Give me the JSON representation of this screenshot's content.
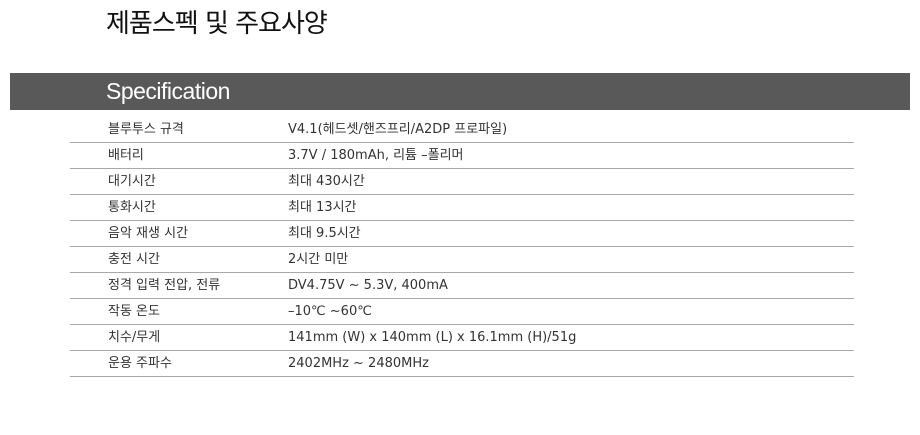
{
  "title": "제품스펙 및 주요사양",
  "section_label": "Specification",
  "colors": {
    "header_bar": "#595959",
    "header_text": "#ffffff",
    "row_divider": "#a8a8a8",
    "body_text": "#333333"
  },
  "specs": [
    {
      "name": "블루투스 규격",
      "value": "V4.1(헤드셋/핸즈프리/A2DP 프로파일)"
    },
    {
      "name": "배터리",
      "value": "3.7V / 180mAh, 리튬 –폴리머"
    },
    {
      "name": "대기시간",
      "value": "최대 430시간"
    },
    {
      "name": "통화시간",
      "value": "최대 13시간"
    },
    {
      "name": "음악 재생 시간",
      "value": "최대 9.5시간"
    },
    {
      "name": "충전 시간",
      "value": "2시간 미만"
    },
    {
      "name": "정격 입력 전압, 전류",
      "value": "DV4.75V ~ 5.3V, 400mA"
    },
    {
      "name": "작동 온도",
      "value": "–10℃ ~60℃"
    },
    {
      "name": "치수/무게",
      "value": "141mm (W) x 140mm (L) x 16.1mm (H)/51g"
    },
    {
      "name": "운용 주파수",
      "value": "2402MHz ~ 2480MHz"
    }
  ]
}
